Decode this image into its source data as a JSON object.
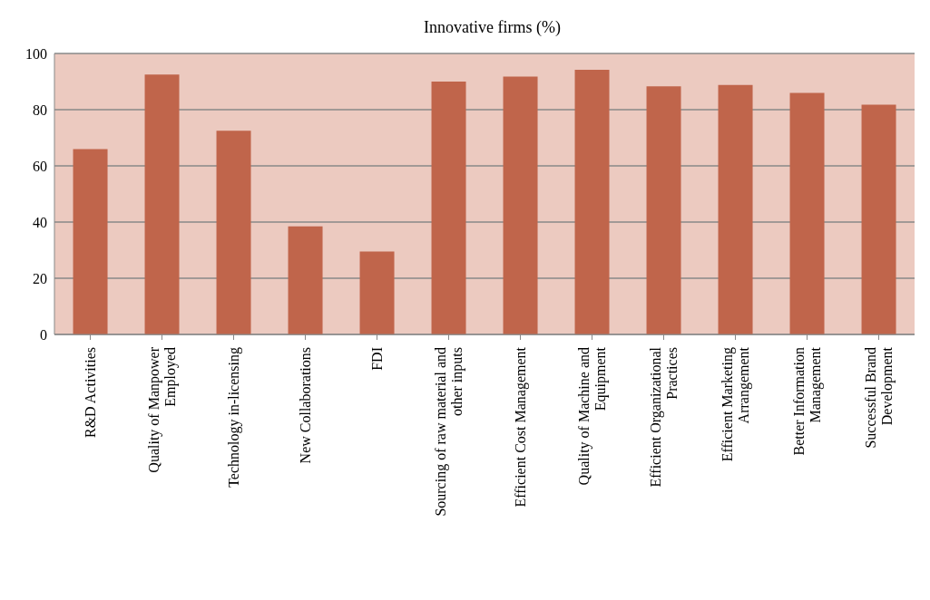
{
  "chart_data": {
    "type": "bar",
    "title": "Innovative firms (%)",
    "categories": [
      "R&D Activities",
      "Quality of Manpower Employed",
      "Technology in-licensing",
      "New Collaborations",
      "FDI",
      "Sourcing of raw material and other inputs",
      "Efficient Cost Management",
      "Quality of Machine and Equipment",
      "Efficient Organizational Practices",
      "Efficient Marketing Arrangement",
      "Better Information Management",
      "Successful Brand Development"
    ],
    "values": [
      66,
      92.5,
      72.5,
      38.5,
      29.5,
      90,
      91.8,
      94.2,
      88.3,
      88.8,
      86,
      81.8
    ],
    "color": "#c0654b",
    "ylim": [
      0,
      100
    ],
    "yticks": [
      0,
      20,
      40,
      60,
      80,
      100
    ],
    "grid": "y"
  }
}
